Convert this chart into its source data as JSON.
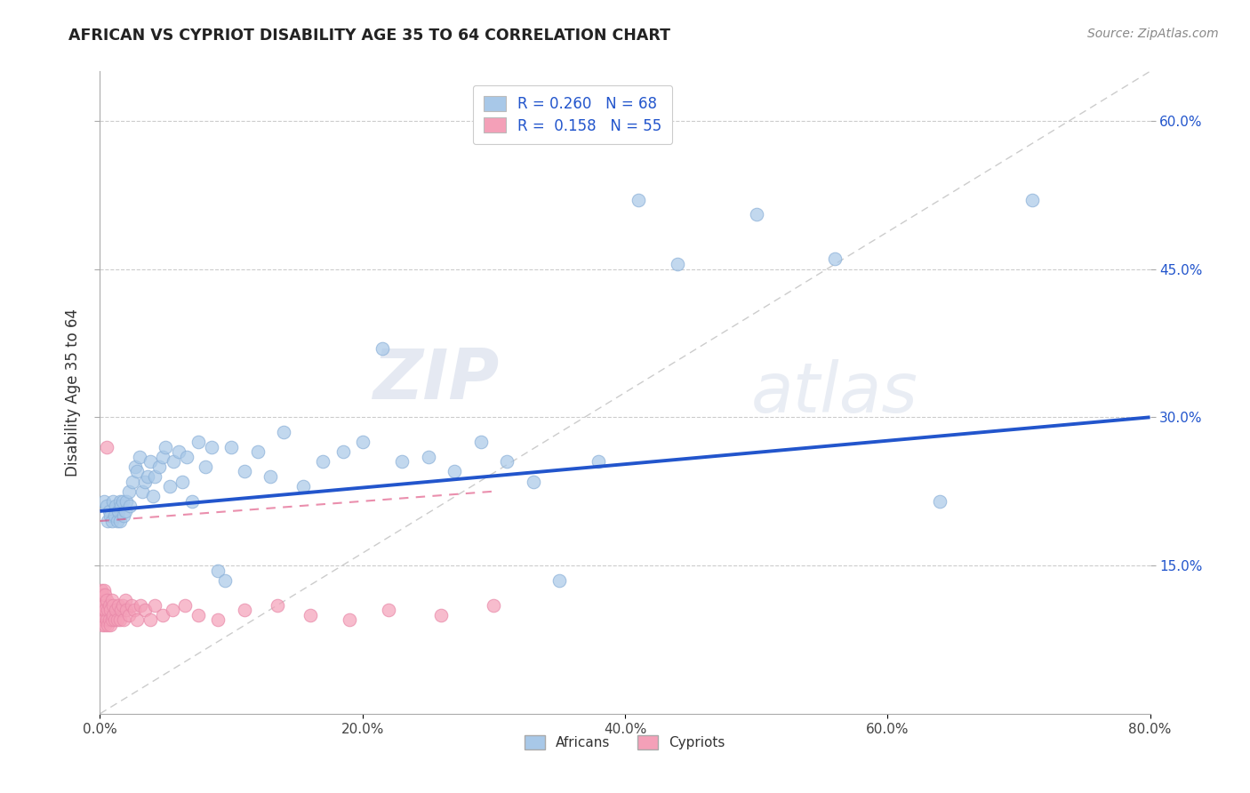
{
  "title": "AFRICAN VS CYPRIOT DISABILITY AGE 35 TO 64 CORRELATION CHART",
  "source": "Source: ZipAtlas.com",
  "ylabel": "Disability Age 35 to 64",
  "xlim": [
    0.0,
    0.8
  ],
  "ylim": [
    0.0,
    0.65
  ],
  "xtick_labels": [
    "0.0%",
    "20.0%",
    "40.0%",
    "60.0%",
    "80.0%"
  ],
  "xtick_vals": [
    0.0,
    0.2,
    0.4,
    0.6,
    0.8
  ],
  "ytick_labels": [
    "15.0%",
    "30.0%",
    "45.0%",
    "60.0%"
  ],
  "ytick_vals": [
    0.15,
    0.3,
    0.45,
    0.6
  ],
  "african_R": 0.26,
  "african_N": 68,
  "cypriot_R": 0.158,
  "cypriot_N": 55,
  "african_color": "#a8c8e8",
  "cypriot_color": "#f4a0b8",
  "african_line_color": "#2255cc",
  "cypriot_line_color": "#dd4477",
  "diagonal_color": "#cccccc",
  "legend_text_color": "#2255cc",
  "right_axis_color": "#2255cc",
  "background_color": "#ffffff",
  "watermark_zip": "ZIP",
  "watermark_atlas": "atlas",
  "africans_x": [
    0.003,
    0.005,
    0.006,
    0.007,
    0.008,
    0.009,
    0.01,
    0.011,
    0.012,
    0.013,
    0.014,
    0.015,
    0.015,
    0.016,
    0.017,
    0.018,
    0.019,
    0.02,
    0.022,
    0.023,
    0.025,
    0.027,
    0.028,
    0.03,
    0.032,
    0.034,
    0.036,
    0.038,
    0.04,
    0.042,
    0.045,
    0.048,
    0.05,
    0.053,
    0.056,
    0.06,
    0.063,
    0.066,
    0.07,
    0.075,
    0.08,
    0.085,
    0.09,
    0.095,
    0.1,
    0.11,
    0.12,
    0.13,
    0.14,
    0.155,
    0.17,
    0.185,
    0.2,
    0.215,
    0.23,
    0.25,
    0.27,
    0.29,
    0.31,
    0.33,
    0.35,
    0.38,
    0.41,
    0.44,
    0.5,
    0.56,
    0.64,
    0.71
  ],
  "africans_y": [
    0.215,
    0.21,
    0.195,
    0.205,
    0.2,
    0.195,
    0.215,
    0.2,
    0.21,
    0.195,
    0.205,
    0.215,
    0.195,
    0.21,
    0.215,
    0.2,
    0.205,
    0.215,
    0.225,
    0.21,
    0.235,
    0.25,
    0.245,
    0.26,
    0.225,
    0.235,
    0.24,
    0.255,
    0.22,
    0.24,
    0.25,
    0.26,
    0.27,
    0.23,
    0.255,
    0.265,
    0.235,
    0.26,
    0.215,
    0.275,
    0.25,
    0.27,
    0.145,
    0.135,
    0.27,
    0.245,
    0.265,
    0.24,
    0.285,
    0.23,
    0.255,
    0.265,
    0.275,
    0.37,
    0.255,
    0.26,
    0.245,
    0.275,
    0.255,
    0.235,
    0.135,
    0.255,
    0.52,
    0.455,
    0.505,
    0.46,
    0.215,
    0.52
  ],
  "cypriots_x": [
    0.001,
    0.001,
    0.001,
    0.002,
    0.002,
    0.002,
    0.003,
    0.003,
    0.003,
    0.004,
    0.004,
    0.004,
    0.005,
    0.005,
    0.005,
    0.006,
    0.006,
    0.007,
    0.007,
    0.008,
    0.008,
    0.009,
    0.009,
    0.01,
    0.01,
    0.011,
    0.012,
    0.013,
    0.014,
    0.015,
    0.016,
    0.017,
    0.018,
    0.019,
    0.02,
    0.022,
    0.024,
    0.026,
    0.028,
    0.031,
    0.034,
    0.038,
    0.042,
    0.048,
    0.055,
    0.065,
    0.075,
    0.09,
    0.11,
    0.135,
    0.16,
    0.19,
    0.22,
    0.26,
    0.3
  ],
  "cypriots_y": [
    0.095,
    0.11,
    0.125,
    0.09,
    0.105,
    0.12,
    0.095,
    0.11,
    0.125,
    0.09,
    0.105,
    0.12,
    0.27,
    0.095,
    0.115,
    0.09,
    0.105,
    0.095,
    0.11,
    0.09,
    0.105,
    0.095,
    0.115,
    0.1,
    0.11,
    0.095,
    0.105,
    0.095,
    0.11,
    0.095,
    0.105,
    0.11,
    0.095,
    0.115,
    0.105,
    0.1,
    0.11,
    0.105,
    0.095,
    0.11,
    0.105,
    0.095,
    0.11,
    0.1,
    0.105,
    0.11,
    0.1,
    0.095,
    0.105,
    0.11,
    0.1,
    0.095,
    0.105,
    0.1,
    0.11
  ]
}
